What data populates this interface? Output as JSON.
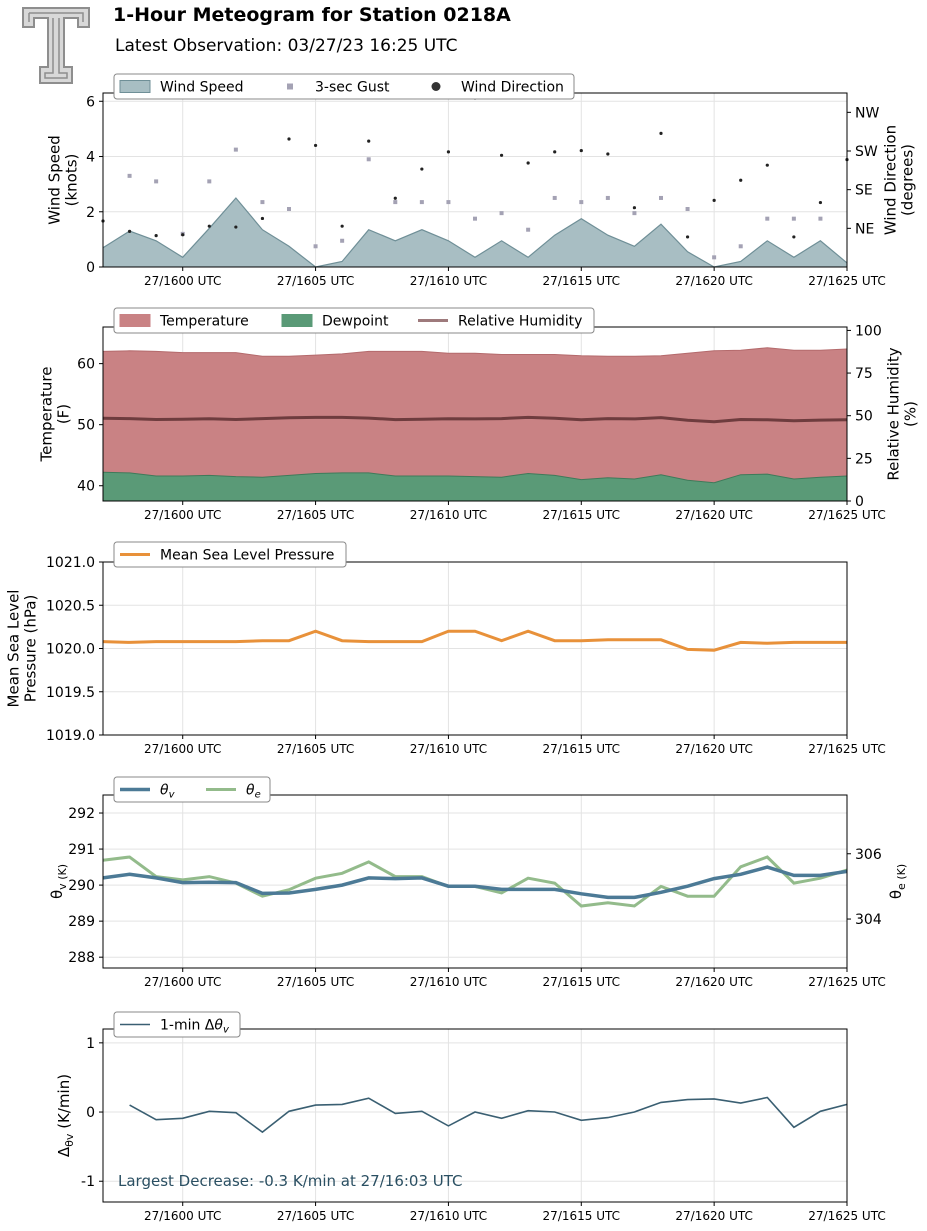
{
  "header": {
    "title": "1-Hour Meteogram for Station 0218A",
    "subtitle": "Latest Observation: 03/27/23 16:25 UTC"
  },
  "x_ticks": [
    "27/1600 UTC",
    "27/1605 UTC",
    "27/1610 UTC",
    "27/1615 UTC",
    "27/1620 UTC",
    "27/1625 UTC"
  ],
  "colors": {
    "wind_fill": "#a8bec3",
    "wind_edge": "#6f8f97",
    "gust": "#a4a2b4",
    "direction": "#222222",
    "temperature": "#c98284",
    "dewpoint": "#5a9a77",
    "rh": "#6e3c3e",
    "pressure": "#e8913a",
    "theta_v": "#4c7a96",
    "theta_e": "#93bb8b",
    "dtheta": "#3a5f72",
    "annotation": "#2a4f62"
  },
  "chart_data": [
    {
      "type": "area",
      "panel": "wind",
      "ylabel": "Wind Speed\n(knots)",
      "y2label": "Wind Direction\n(degrees)",
      "ylim": [
        0,
        6.3
      ],
      "yticks": [
        0,
        2,
        4,
        6
      ],
      "y2_ticks": [
        "NE",
        "SE",
        "SW",
        "NW"
      ],
      "y2_tick_values": [
        45,
        135,
        225,
        315
      ],
      "y2lim": [
        -45,
        360
      ],
      "legend_location": "top-left",
      "x": [
        -3,
        -2,
        -1,
        0,
        1,
        2,
        3,
        4,
        5,
        6,
        7,
        8,
        9,
        10,
        11,
        12,
        13,
        14,
        15,
        16,
        17,
        18,
        19,
        20,
        21,
        22,
        23,
        24,
        25
      ],
      "series": [
        {
          "name": "Wind Speed",
          "values": [
            0.7,
            1.3,
            0.95,
            0.35,
            1.4,
            2.5,
            1.35,
            0.75,
            0.0,
            0.2,
            1.35,
            0.95,
            1.35,
            0.95,
            0.35,
            0.95,
            0.35,
            1.15,
            1.75,
            1.15,
            0.75,
            1.55,
            0.55,
            0.0,
            0.2,
            0.95,
            0.35,
            0.95,
            0.15
          ]
        },
        {
          "name": "3-sec Gust",
          "values": [
            null,
            3.3,
            3.1,
            1.2,
            3.1,
            4.25,
            2.35,
            2.1,
            0.75,
            0.95,
            3.9,
            2.35,
            2.35,
            2.35,
            1.75,
            1.95,
            1.35,
            2.5,
            2.35,
            2.5,
            1.95,
            2.5,
            2.1,
            0.35,
            0.75,
            1.75,
            1.75,
            1.75,
            null
          ]
        },
        {
          "name": "Wind Direction",
          "values": [
            62,
            38,
            28,
            30,
            50,
            48,
            68,
            253,
            238,
            50,
            248,
            115,
            183,
            223,
            348,
            215,
            197,
            223,
            226,
            218,
            93,
            266,
            25,
            110,
            157,
            192,
            25,
            105,
            205
          ]
        }
      ]
    },
    {
      "type": "area",
      "panel": "temperature",
      "ylabel": "Temperature\n(F)",
      "y2label": "Relative Humidity\n(%)",
      "ylim": [
        37.5,
        66
      ],
      "yticks": [
        40,
        50,
        60
      ],
      "y2lim": [
        0,
        102
      ],
      "y2ticks": [
        0,
        25,
        50,
        75,
        100
      ],
      "legend_location": "top-left",
      "x": [
        -3,
        -2,
        -1,
        0,
        1,
        2,
        3,
        4,
        5,
        6,
        7,
        8,
        9,
        10,
        11,
        12,
        13,
        14,
        15,
        16,
        17,
        18,
        19,
        20,
        21,
        22,
        23,
        24,
        25
      ],
      "series": [
        {
          "name": "Temperature",
          "values": [
            62.0,
            62.1,
            62.0,
            61.8,
            61.8,
            61.8,
            61.2,
            61.2,
            61.4,
            61.6,
            62.0,
            62.0,
            62.0,
            61.7,
            61.7,
            61.5,
            61.5,
            61.5,
            61.3,
            61.2,
            61.2,
            61.3,
            61.7,
            62.1,
            62.2,
            62.6,
            62.2,
            62.2,
            62.4
          ]
        },
        {
          "name": "Dewpoint",
          "values": [
            42.2,
            42.1,
            41.6,
            41.6,
            41.7,
            41.5,
            41.4,
            41.7,
            42.0,
            42.1,
            42.1,
            41.6,
            41.6,
            41.6,
            41.5,
            41.4,
            42.0,
            41.7,
            41.0,
            41.3,
            41.1,
            41.8,
            40.9,
            40.5,
            41.8,
            41.9,
            41.1,
            41.4,
            41.6
          ]
        },
        {
          "name": "Relative Humidity",
          "values": [
            48.5,
            48.3,
            47.8,
            47.9,
            48.2,
            47.8,
            48.3,
            48.8,
            49.0,
            49.0,
            48.6,
            47.7,
            47.9,
            48.2,
            48.1,
            48.3,
            49.0,
            48.5,
            47.6,
            48.3,
            48.1,
            48.9,
            47.3,
            46.4,
            47.8,
            47.6,
            47.0,
            47.4,
            47.6
          ]
        }
      ]
    },
    {
      "type": "line",
      "panel": "pressure",
      "ylabel": "Mean Sea Level\nPressure (hPa)",
      "ylim": [
        1019.0,
        1021.0
      ],
      "yticks": [
        1019.0,
        1019.5,
        1020.0,
        1020.5,
        1021.0
      ],
      "legend_location": "top-left",
      "x": [
        -3,
        -2,
        -1,
        0,
        1,
        2,
        3,
        4,
        5,
        6,
        7,
        8,
        9,
        10,
        11,
        12,
        13,
        14,
        15,
        16,
        17,
        18,
        19,
        20,
        21,
        22,
        23,
        24,
        25
      ],
      "series": [
        {
          "name": "Mean Sea Level Pressure",
          "values": [
            1020.08,
            1020.07,
            1020.08,
            1020.08,
            1020.08,
            1020.08,
            1020.09,
            1020.09,
            1020.2,
            1020.09,
            1020.08,
            1020.08,
            1020.08,
            1020.2,
            1020.2,
            1020.09,
            1020.2,
            1020.09,
            1020.09,
            1020.1,
            1020.1,
            1020.1,
            1019.99,
            1019.98,
            1020.07,
            1020.06,
            1020.07,
            1020.07,
            1020.07
          ]
        }
      ]
    },
    {
      "type": "line",
      "panel": "theta",
      "ylabel": "θv (K)",
      "y2label": "θe (K)",
      "ylim": [
        287.7,
        292.5
      ],
      "yticks": [
        288,
        289,
        290,
        291,
        292
      ],
      "y2lim": [
        302.5,
        307.8
      ],
      "y2ticks": [
        304,
        306
      ],
      "legend_location": "top-left",
      "x": [
        -3,
        -2,
        -1,
        0,
        1,
        2,
        3,
        4,
        5,
        6,
        7,
        8,
        9,
        10,
        11,
        12,
        13,
        14,
        15,
        16,
        17,
        18,
        19,
        20,
        21,
        22,
        23,
        24,
        25
      ],
      "series": [
        {
          "name": "θv",
          "axis": "left",
          "values": [
            290.2,
            290.3,
            290.2,
            290.07,
            290.08,
            290.07,
            289.77,
            289.78,
            289.88,
            290.0,
            290.2,
            290.18,
            290.2,
            289.97,
            289.97,
            289.88,
            289.88,
            289.88,
            289.76,
            289.66,
            289.66,
            289.8,
            289.97,
            290.18,
            290.3,
            290.5,
            290.27,
            290.27,
            290.38
          ]
        },
        {
          "name": "θe",
          "axis": "right",
          "values": [
            305.8,
            305.9,
            305.3,
            305.2,
            305.3,
            305.1,
            304.7,
            304.9,
            305.25,
            305.4,
            305.75,
            305.3,
            305.3,
            305.0,
            305.0,
            304.8,
            305.25,
            305.1,
            304.4,
            304.5,
            304.4,
            305.0,
            304.7,
            304.7,
            305.6,
            305.9,
            305.1,
            305.25,
            305.5
          ]
        }
      ]
    },
    {
      "type": "line",
      "panel": "dtheta",
      "ylabel": "Δθv (K/min)",
      "ylim": [
        -1.3,
        1.2
      ],
      "yticks": [
        -1,
        0,
        1
      ],
      "legend_location": "top-left",
      "annotation": "Largest Decrease: -0.3 K/min at 27/16:03 UTC",
      "x": [
        -3,
        -2,
        -1,
        0,
        1,
        2,
        3,
        4,
        5,
        6,
        7,
        8,
        9,
        10,
        11,
        12,
        13,
        14,
        15,
        16,
        17,
        18,
        19,
        20,
        21,
        22,
        23,
        24,
        25
      ],
      "series": [
        {
          "name": "1-min Δθv",
          "values": [
            null,
            0.1,
            -0.11,
            -0.09,
            0.01,
            -0.01,
            -0.29,
            0.01,
            0.1,
            0.11,
            0.2,
            -0.02,
            0.01,
            -0.2,
            0.0,
            -0.09,
            0.02,
            0.0,
            -0.12,
            -0.08,
            0.0,
            0.14,
            0.18,
            0.19,
            0.13,
            0.21,
            -0.22,
            0.01,
            0.11
          ]
        }
      ]
    }
  ]
}
